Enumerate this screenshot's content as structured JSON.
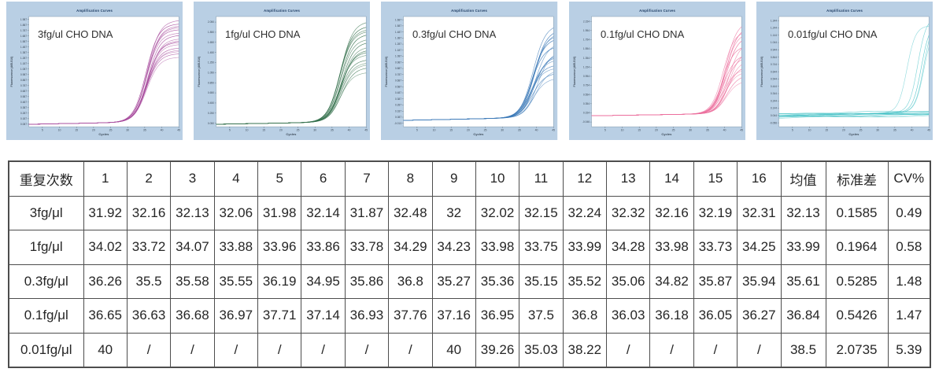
{
  "colors": {
    "panel_bg": "#b9cfe4",
    "panel_title_text": "#17365d",
    "plot_border": "#8099ad",
    "tick_text": "#3d4a58",
    "annotation_text": "#2e2e2e",
    "table_border": "#4d4d4d",
    "table_text": "#262626"
  },
  "chart_data": [
    {
      "type": "line",
      "panel_title": "Amplification Curves",
      "annotation": "3fg/ul CHO DNA",
      "xlabel": "Cycles",
      "ylabel": "Fluorescence (465-510)",
      "line_color": "#a94f9f",
      "x_ticks": [
        5,
        10,
        15,
        20,
        25,
        30,
        35,
        40,
        45
      ],
      "xlim": [
        1,
        45
      ],
      "ylim": [
        0.04,
        2.04
      ],
      "y_ticks": [
        "1.987",
        "1.887",
        "1.787",
        "1.687",
        "1.587",
        "1.487",
        "1.387",
        "1.287",
        "1.187",
        "1.087",
        "0.987",
        "0.887",
        "0.787",
        "0.687",
        "0.587",
        "0.487",
        "0.387",
        "0.287",
        "0.187",
        "0.087"
      ],
      "baseline": 0.085,
      "ct_values": [
        31.92,
        32.16,
        32.13,
        32.06,
        31.98,
        32.14,
        31.87,
        32.48,
        32,
        32.02,
        32.15,
        32.24,
        32.32,
        32.16,
        32.19,
        32.31
      ],
      "plateau_range": [
        1.15,
        1.86
      ],
      "steepness": 0.55,
      "flat_count": 0
    },
    {
      "type": "line",
      "panel_title": "Amplification Curves",
      "annotation": "1fg/ul CHO DNA",
      "xlabel": "Cycles",
      "ylabel": "Fluorescence (465-510)",
      "line_color": "#35714d",
      "x_ticks": [
        5,
        10,
        15,
        20,
        25,
        30,
        35,
        40,
        45
      ],
      "xlim": [
        1,
        45
      ],
      "ylim": [
        -0.02,
        2.16
      ],
      "y_ticks": [
        "2.050",
        "1.850",
        "1.650",
        "1.450",
        "1.250",
        "1.050",
        "0.850",
        "0.650",
        "0.450",
        "0.250",
        "0.050"
      ],
      "baseline": 0.03,
      "ct_values": [
        34.02,
        33.72,
        34.07,
        33.88,
        33.96,
        33.86,
        33.78,
        34.29,
        34.23,
        33.98,
        33.75,
        33.99,
        34.28,
        33.98,
        33.73,
        34.25
      ],
      "plateau_range": [
        0.95,
        2.02
      ],
      "steepness": 0.55,
      "flat_count": 0
    },
    {
      "type": "line",
      "panel_title": "Amplification Curves",
      "annotation": "0.3fg/ul CHO DNA",
      "xlabel": "Cycles",
      "ylabel": "Fluorescence (465-510)",
      "line_color": "#3c7ab8",
      "x_ticks": [
        5,
        10,
        15,
        20,
        25,
        30,
        35,
        40,
        45
      ],
      "xlim": [
        1,
        45
      ],
      "ylim": [
        -0.07,
        1.74
      ],
      "y_ticks": [
        "1.687",
        "1.587",
        "1.487",
        "1.387",
        "1.287",
        "1.187",
        "1.087",
        "0.987",
        "0.887",
        "0.787",
        "0.687",
        "0.587",
        "0.487",
        "0.387",
        "0.287",
        "0.187",
        "0.087",
        "-0.013"
      ],
      "baseline": 0.035,
      "ct_values": [
        36.26,
        35.5,
        35.58,
        35.55,
        36.19,
        34.95,
        35.86,
        36.8,
        35.27,
        35.36,
        35.15,
        35.52,
        35.06,
        34.82,
        35.87,
        35.94
      ],
      "plateau_range": [
        0.62,
        1.55
      ],
      "steepness": 0.55,
      "flat_count": 0
    },
    {
      "type": "line",
      "panel_title": "Amplification Curves",
      "annotation": "0.1fg/ul CHO DNA",
      "xlabel": "Cycles",
      "ylabel": "Fluorescence (465-510)",
      "line_color": "#ec6f9d",
      "x_ticks": [
        5,
        10,
        15,
        20,
        25,
        30,
        35,
        40,
        45
      ],
      "xlim": [
        1,
        45
      ],
      "ylim": [
        -0.15,
        2.26
      ],
      "y_ticks": [
        "2.154",
        "1.954",
        "1.754",
        "1.554",
        "1.354",
        "1.154",
        "0.954",
        "0.754",
        "0.554",
        "0.354",
        "0.154",
        "-0.046"
      ],
      "baseline": 0.09,
      "ct_values": [
        36.65,
        36.63,
        36.68,
        36.97,
        37.71,
        37.14,
        36.93,
        37.76,
        37.16,
        36.95,
        37.5,
        36.8,
        36.03,
        36.18,
        36.05,
        36.27
      ],
      "plateau_range": [
        0.68,
        2.05
      ],
      "steepness": 0.6,
      "flat_count": 0
    },
    {
      "type": "line",
      "panel_title": "Amplification Curves",
      "annotation": "0.01fg/ul CHO DNA",
      "xlabel": "Cycles",
      "ylabel": "Fluorescence (465-510)",
      "line_color": "#4cc4c8",
      "x_ticks": [
        5,
        10,
        15,
        20,
        25,
        30,
        35,
        40,
        45
      ],
      "xlim": [
        1,
        45
      ],
      "ylim": [
        -0.11,
        1.4
      ],
      "y_ticks": [
        "1.344",
        "1.244",
        "1.144",
        "1.044",
        "0.944",
        "0.844",
        "0.744",
        "0.644",
        "0.544",
        "0.444",
        "0.344",
        "0.244",
        "0.144",
        "0.044",
        "-0.056"
      ],
      "baseline": 0.04,
      "ct_values": [
        35.03,
        38.22,
        39.26,
        40,
        40
      ],
      "plateau_range": [
        1.15,
        1.34
      ],
      "steepness": 0.8,
      "flat_count": 11
    }
  ],
  "table": {
    "headers": [
      "重复次数",
      "1",
      "2",
      "3",
      "4",
      "5",
      "6",
      "7",
      "8",
      "9",
      "10",
      "11",
      "12",
      "13",
      "14",
      "15",
      "16",
      "均值",
      "标准差",
      "CV%"
    ],
    "rows": [
      {
        "label": "3fg/μl",
        "values": [
          "31.92",
          "32.16",
          "32.13",
          "32.06",
          "31.98",
          "32.14",
          "31.87",
          "32.48",
          "32",
          "32.02",
          "32.15",
          "32.24",
          "32.32",
          "32.16",
          "32.19",
          "32.31"
        ],
        "mean": "32.13",
        "sd": "0.1585",
        "cv": "0.49"
      },
      {
        "label": "1fg/μl",
        "values": [
          "34.02",
          "33.72",
          "34.07",
          "33.88",
          "33.96",
          "33.86",
          "33.78",
          "34.29",
          "34.23",
          "33.98",
          "33.75",
          "33.99",
          "34.28",
          "33.98",
          "33.73",
          "34.25"
        ],
        "mean": "33.99",
        "sd": "0.1964",
        "cv": "0.58"
      },
      {
        "label": "0.3fg/μl",
        "values": [
          "36.26",
          "35.5",
          "35.58",
          "35.55",
          "36.19",
          "34.95",
          "35.86",
          "36.8",
          "35.27",
          "35.36",
          "35.15",
          "35.52",
          "35.06",
          "34.82",
          "35.87",
          "35.94"
        ],
        "mean": "35.61",
        "sd": "0.5285",
        "cv": "1.48"
      },
      {
        "label": "0.1fg/μl",
        "values": [
          "36.65",
          "36.63",
          "36.68",
          "36.97",
          "37.71",
          "37.14",
          "36.93",
          "37.76",
          "37.16",
          "36.95",
          "37.5",
          "36.8",
          "36.03",
          "36.18",
          "36.05",
          "36.27"
        ],
        "mean": "36.84",
        "sd": "0.5426",
        "cv": "1.47"
      },
      {
        "label": "0.01fg/μl",
        "values": [
          "40",
          "/",
          "/",
          "/",
          "/",
          "/",
          "/",
          "/",
          "40",
          "39.26",
          "35.03",
          "38.22",
          "/",
          "/",
          "/",
          "/"
        ],
        "mean": "38.5",
        "sd": "2.0735",
        "cv": "5.39"
      }
    ]
  }
}
